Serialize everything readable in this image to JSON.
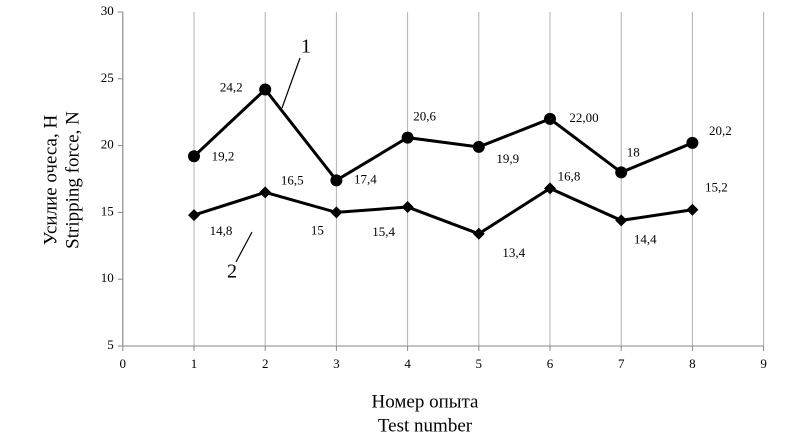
{
  "chart_data": {
    "type": "line",
    "y_label": [
      "Усилие очеса, Н",
      "Stripping force, N"
    ],
    "x_label": [
      "Номер опыта",
      "Test number"
    ],
    "xlim": [
      0,
      9
    ],
    "xticks": [
      0,
      1,
      2,
      3,
      4,
      5,
      6,
      7,
      8,
      9
    ],
    "ylim": [
      5,
      30
    ],
    "yticks": [
      5,
      10,
      15,
      20,
      25,
      30
    ],
    "grid": "x",
    "x": [
      1,
      2,
      3,
      4,
      5,
      6,
      7,
      8
    ],
    "series": [
      {
        "name": "1",
        "color": "#000000",
        "marker": "circle",
        "values": [
          19.2,
          24.2,
          17.4,
          20.6,
          19.9,
          22.0,
          18,
          20.2
        ],
        "value_labels": [
          "19,2",
          "24,2",
          "17,4",
          "20,6",
          "19,9",
          "22,00",
          "18",
          "20,2"
        ]
      },
      {
        "name": "2",
        "color": "#000000",
        "marker": "diamond",
        "values": [
          14.8,
          16.5,
          15,
          15.4,
          13.4,
          16.8,
          14.4,
          15.2
        ],
        "value_labels": [
          "14,8",
          "16,5",
          "15",
          "15,4",
          "13,4",
          "16,8",
          "14,4",
          "15,2"
        ]
      }
    ]
  }
}
